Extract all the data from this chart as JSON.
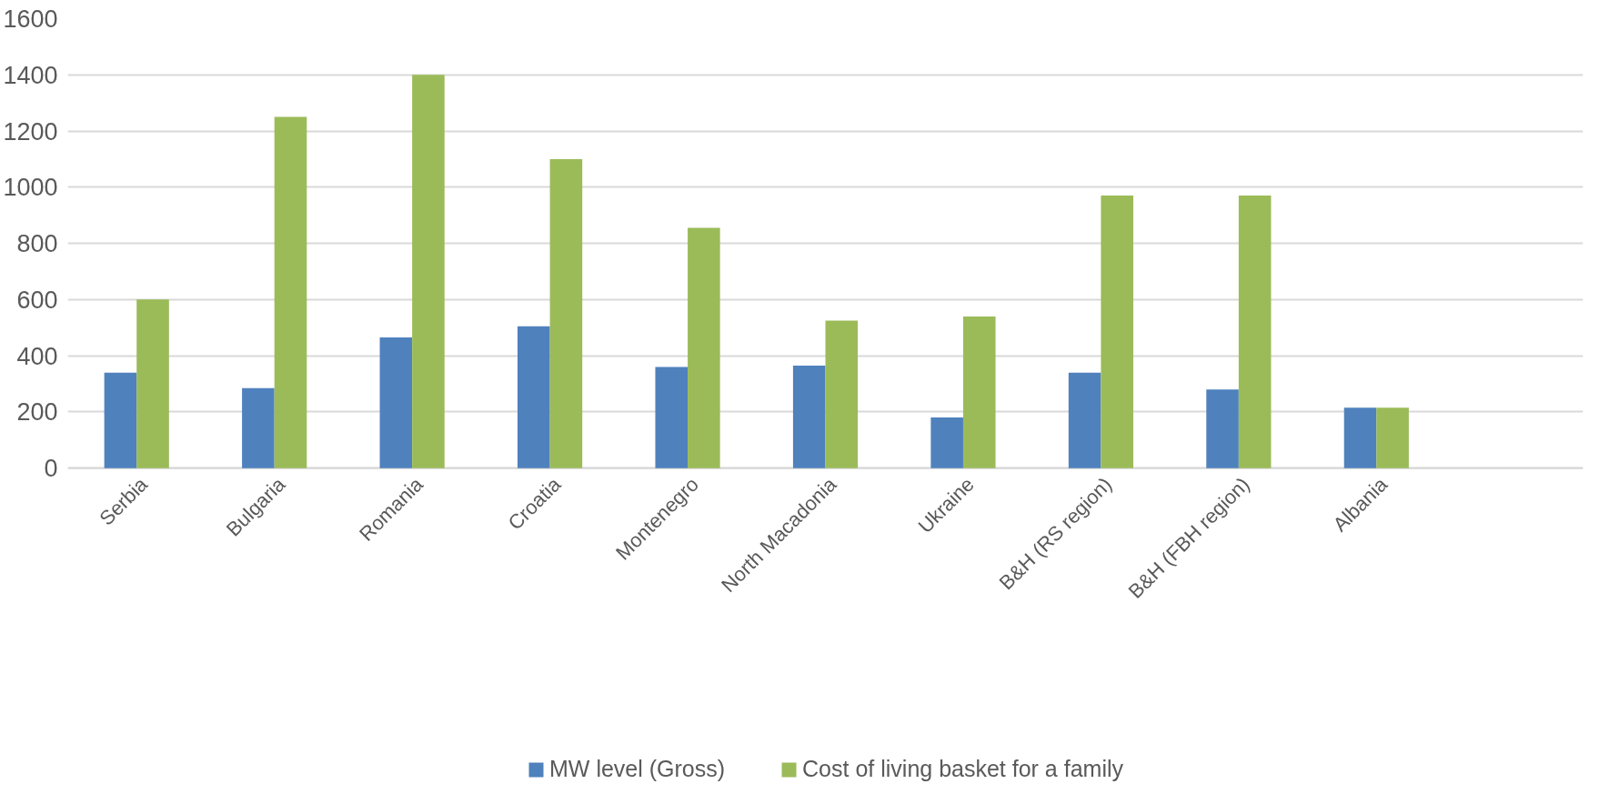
{
  "chart_data": {
    "type": "bar",
    "categories": [
      "Serbia",
      "Bulgaria",
      "Romania",
      "Croatia",
      "Montenegro",
      "North Macadonia",
      "Ukraine",
      "B&H (RS region)",
      "B&H (FBH region)",
      "Albania",
      null
    ],
    "series": [
      {
        "name": "MW level (Gross)",
        "color": "#4f81bd",
        "values": [
          340,
          285,
          465,
          505,
          360,
          365,
          180,
          340,
          280,
          215,
          null
        ]
      },
      {
        "name": "Cost of living basket for a family",
        "color": "#9bbb59",
        "values": [
          600,
          1250,
          1400,
          1100,
          855,
          525,
          540,
          970,
          970,
          215,
          null
        ]
      }
    ],
    "ylim": [
      0,
      1600
    ],
    "yticks": [
      0,
      200,
      400,
      600,
      800,
      1000,
      1200,
      1400,
      1600
    ],
    "grid": "y",
    "legend": "bottom"
  }
}
